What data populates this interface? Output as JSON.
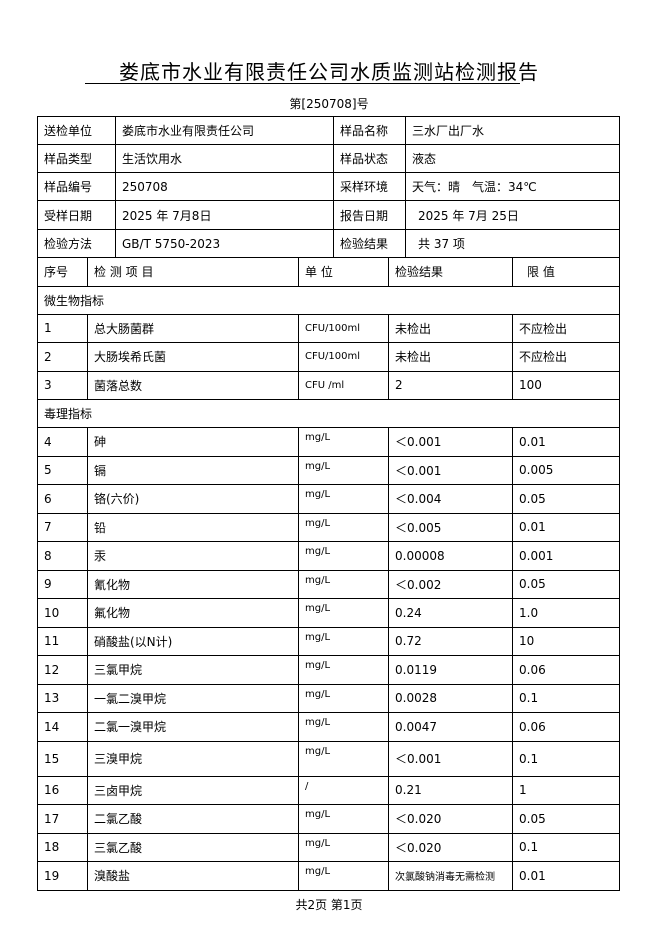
{
  "header": {
    "title": "娄底市水业有限责任公司水质监测站检测报告",
    "report_no": "第[250708]号"
  },
  "info": {
    "rows": [
      [
        "送检单位",
        "娄底市水业有限责任公司",
        "样品名称",
        "三水厂出厂水"
      ],
      [
        "样品类型",
        "生活饮用水",
        "样品状态",
        "液态"
      ],
      [
        "样品编号",
        "250708",
        "采样环境",
        "天气：晴　气温：34℃"
      ],
      [
        "受样日期",
        "2025 年 7月8日",
        "报告日期",
        "2025 年 7月 25日"
      ],
      [
        "检验方法",
        "GB/T 5750-2023",
        "检验结果",
        "共 37 项"
      ]
    ]
  },
  "table": {
    "columns": [
      "序号",
      "检 测 项 目",
      "单 位",
      "检验结果",
      "限 值"
    ],
    "sections": [
      {
        "title": "微生物指标",
        "rows": [
          [
            "1",
            "总大肠菌群",
            "CFU/100ml",
            "未检出",
            "不应检出"
          ],
          [
            "2",
            "大肠埃希氏菌",
            "CFU/100ml",
            "未检出",
            "不应检出"
          ],
          [
            "3",
            "菌落总数",
            "CFU /ml",
            "2",
            "100"
          ]
        ]
      },
      {
        "title": "毒理指标",
        "rows": [
          [
            "4",
            "砷",
            "mg/L",
            "＜0.001",
            "0.01"
          ],
          [
            "5",
            "镉",
            "mg/L",
            "＜0.001",
            "0.005"
          ],
          [
            "6",
            "铬(六价)",
            "mg/L",
            "＜0.004",
            "0.05"
          ],
          [
            "7",
            "铅",
            "mg/L",
            "＜0.005",
            "0.01"
          ],
          [
            "8",
            "汞",
            "mg/L",
            "0.00008",
            "0.001"
          ],
          [
            "9",
            "氰化物",
            "mg/L",
            "＜0.002",
            "0.05"
          ],
          [
            "10",
            "氟化物",
            "mg/L",
            "0.24",
            "1.0"
          ],
          [
            "11",
            "硝酸盐(以N计)",
            "mg/L",
            "0.72",
            "10"
          ],
          [
            "12",
            "三氯甲烷",
            "mg/L",
            "0.0119",
            "0.06"
          ],
          [
            "13",
            "一氯二溴甲烷",
            "mg/L",
            "0.0028",
            "0.1"
          ],
          [
            "14",
            "二氯一溴甲烷",
            "mg/L",
            "0.0047",
            "0.06"
          ],
          [
            "15",
            "三溴甲烷",
            "mg/L",
            "＜0.001",
            "0.1"
          ],
          [
            "16",
            "三卤甲烷",
            "/",
            "0.21",
            "1"
          ],
          [
            "17",
            "二氯乙酸",
            "mg/L",
            "＜0.020",
            "0.05"
          ],
          [
            "18",
            "三氯乙酸",
            "mg/L",
            "＜0.020",
            "0.1"
          ],
          [
            "19",
            "溴酸盐",
            "mg/L",
            "次氯酸钠消毒无需检测",
            "0.01"
          ]
        ]
      }
    ]
  },
  "footer": "共2页 第1页"
}
